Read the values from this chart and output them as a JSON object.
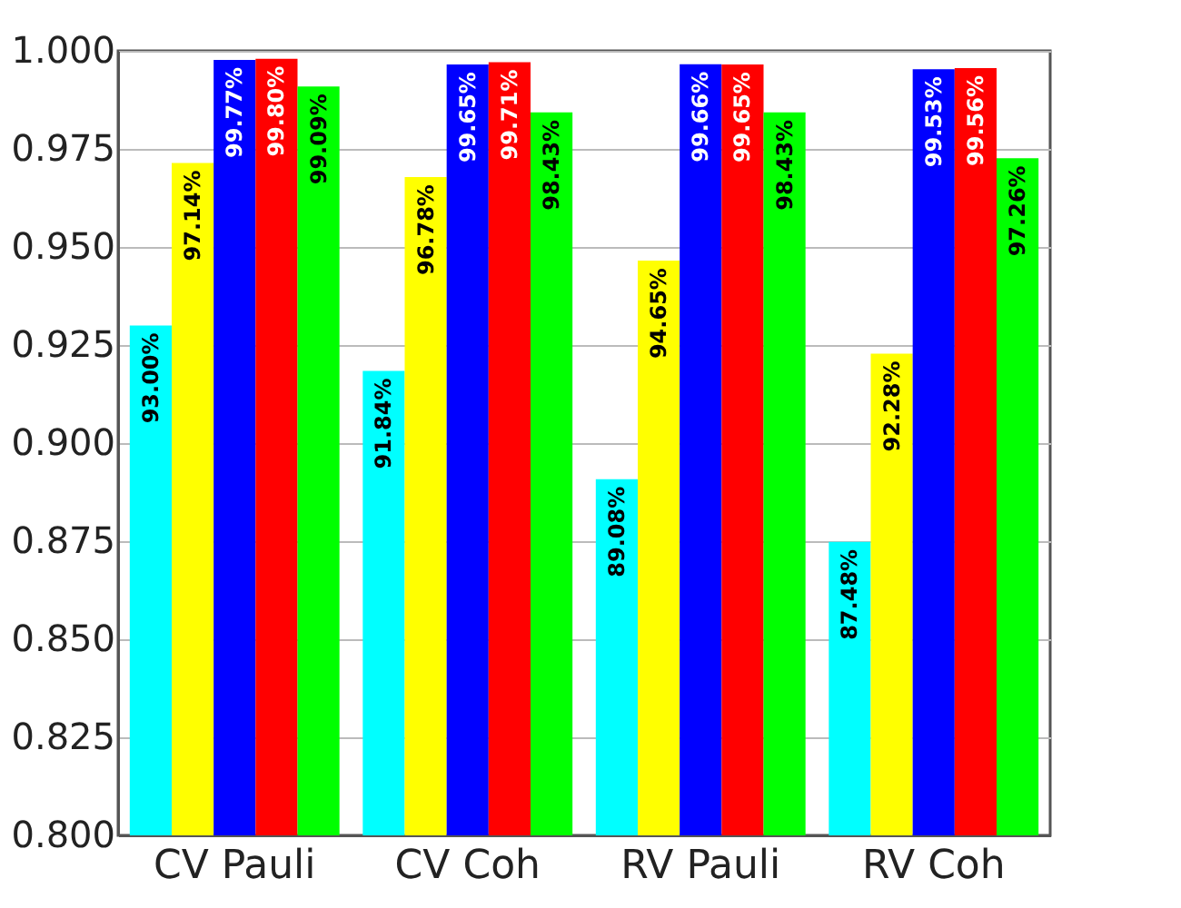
{
  "chart_data": {
    "type": "bar",
    "categories": [
      "CV Pauli",
      "CV Coh",
      "RV Pauli",
      "RV Coh"
    ],
    "series": [
      {
        "color": "#00ffff",
        "values": [
          0.93,
          0.9184,
          0.8908,
          0.8748
        ],
        "value_labels": [
          "93.00%",
          "91.84%",
          "89.08%",
          "87.48%"
        ]
      },
      {
        "color": "#ffff00",
        "values": [
          0.9714,
          0.9678,
          0.9465,
          0.9228
        ],
        "value_labels": [
          "97.14%",
          "96.78%",
          "94.65%",
          "92.28%"
        ]
      },
      {
        "color": "#0000ff",
        "values": [
          0.9977,
          0.9965,
          0.9966,
          0.9953
        ],
        "value_labels": [
          "99.77%",
          "99.65%",
          "99.66%",
          "99.53%"
        ]
      },
      {
        "color": "#ff0000",
        "values": [
          0.998,
          0.9971,
          0.9965,
          0.9956
        ],
        "value_labels": [
          "99.80%",
          "99.71%",
          "99.65%",
          "99.56%"
        ]
      },
      {
        "color": "#00ff00",
        "values": [
          0.9909,
          0.9843,
          0.9843,
          0.9726
        ],
        "value_labels": [
          "99.09%",
          "98.43%",
          "98.43%",
          "97.26%"
        ]
      }
    ],
    "ylim": [
      0.8,
      1.0
    ],
    "yticks": [
      {
        "value": 0.8,
        "label": "0.800"
      },
      0.825,
      {
        "value": 0.85,
        "label": "0.850"
      },
      0.875,
      {
        "value": 0.9,
        "label": "0.900"
      },
      0.925,
      {
        "value": 0.95,
        "label": "0.950"
      },
      0.975,
      {
        "value": 1.0,
        "label": "1.000"
      }
    ],
    "grid": "y"
  }
}
